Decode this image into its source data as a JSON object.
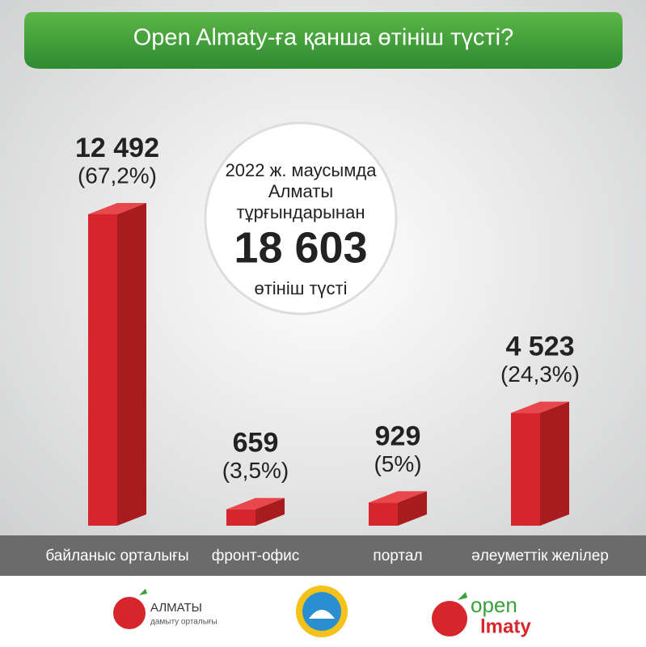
{
  "chart_data": {
    "type": "bar3d",
    "title": "Open Almaty-ға қанша өтініш түсті?",
    "categories": [
      "байланыс орталығы",
      "фронт-офис",
      "портал",
      "әлеуметтік желілер"
    ],
    "values": [
      12492,
      659,
      929,
      4523
    ],
    "value_labels": [
      "12 492",
      "659",
      "929",
      "4 523"
    ],
    "share_labels": [
      "(67,2%)",
      "(3,5%)",
      "(5%)",
      "(24,3%)"
    ],
    "color": "#d7262b",
    "annotation": [
      "2022 ж. маусымда",
      "Алматы",
      "тұрғындарынан",
      "18 603",
      "өтініш түсті"
    ]
  },
  "footer": {
    "left_title": "АЛМАТЫ",
    "left_subtitle": "дамыту орталығы",
    "right_top": "open",
    "right_bottom": "lmaty"
  }
}
